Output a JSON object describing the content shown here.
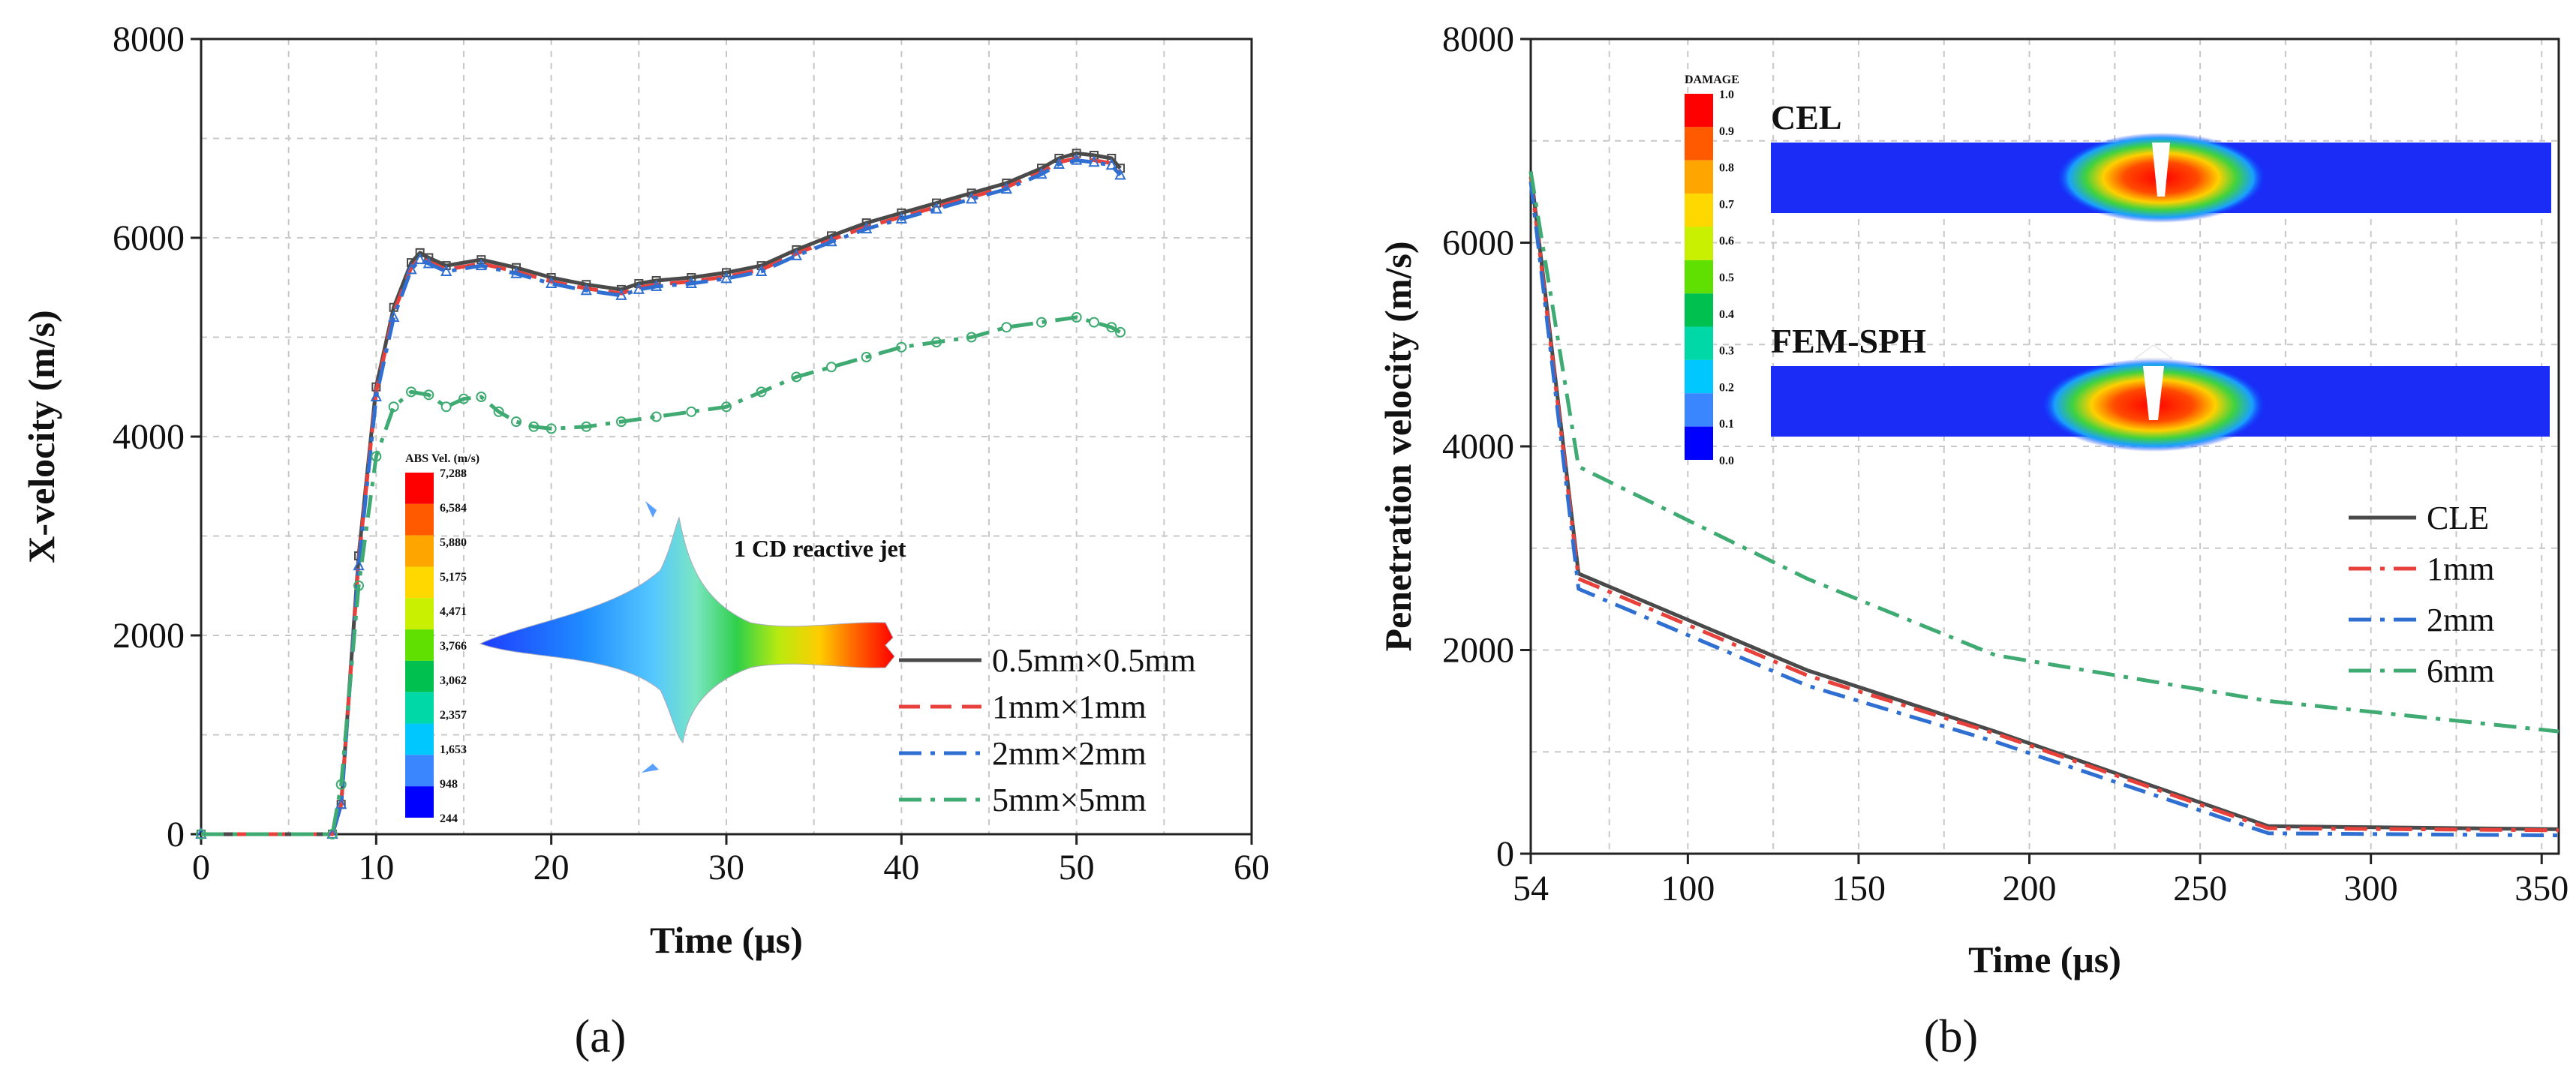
{
  "chart_data": [
    {
      "id": "a",
      "type": "line",
      "panel_label": "(a)",
      "xlabel": "Time (μs)",
      "ylabel": "X-velocity (m/s)",
      "xlim": [
        0,
        60
      ],
      "ylim": [
        0,
        8000
      ],
      "x_ticks": [
        0,
        10,
        20,
        30,
        40,
        50,
        60
      ],
      "y_ticks": [
        0,
        2000,
        4000,
        6000,
        8000
      ],
      "grid": true,
      "legend_position": "bottom-right",
      "series": [
        {
          "name": "0.5mm×0.5mm",
          "color": "#4a4a4a",
          "dash": "solid",
          "marker": "square",
          "x": [
            0,
            7.5,
            8,
            9,
            10,
            11,
            12,
            12.5,
            13,
            14,
            16,
            18,
            20,
            22,
            24,
            25,
            26,
            28,
            30,
            32,
            34,
            36,
            38,
            40,
            42,
            44,
            46,
            48,
            49,
            50,
            51,
            52,
            52.5
          ],
          "y": [
            0,
            0,
            300,
            2800,
            4500,
            5300,
            5750,
            5850,
            5800,
            5720,
            5780,
            5700,
            5600,
            5530,
            5480,
            5540,
            5570,
            5600,
            5650,
            5720,
            5880,
            6020,
            6150,
            6250,
            6350,
            6450,
            6550,
            6700,
            6800,
            6850,
            6830,
            6800,
            6700
          ]
        },
        {
          "name": "1mm×1mm",
          "color": "#e8413c",
          "dash": "dashed",
          "marker": "none",
          "x": [
            0,
            7.5,
            8,
            9,
            10,
            11,
            12,
            12.5,
            13,
            14,
            16,
            18,
            20,
            22,
            24,
            25,
            26,
            28,
            30,
            32,
            34,
            36,
            38,
            40,
            42,
            44,
            46,
            48,
            49,
            50,
            51,
            52,
            52.5
          ],
          "y": [
            0,
            0,
            300,
            2750,
            4450,
            5250,
            5700,
            5800,
            5760,
            5680,
            5740,
            5660,
            5560,
            5490,
            5440,
            5500,
            5530,
            5560,
            5610,
            5680,
            5840,
            5980,
            6110,
            6210,
            6310,
            6410,
            6510,
            6660,
            6760,
            6800,
            6780,
            6750,
            6650
          ]
        },
        {
          "name": "2mm×2mm",
          "color": "#2f6fd1",
          "dash": "dashdot",
          "marker": "triangle",
          "x": [
            0,
            7.5,
            8,
            9,
            10,
            11,
            12,
            12.5,
            13,
            14,
            16,
            18,
            20,
            22,
            24,
            25,
            26,
            28,
            30,
            32,
            34,
            36,
            38,
            40,
            42,
            44,
            46,
            48,
            49,
            50,
            51,
            52,
            52.5
          ],
          "y": [
            0,
            0,
            300,
            2700,
            4400,
            5200,
            5680,
            5780,
            5740,
            5660,
            5720,
            5640,
            5540,
            5470,
            5420,
            5480,
            5510,
            5540,
            5590,
            5660,
            5820,
            5960,
            6090,
            6190,
            6290,
            6390,
            6490,
            6640,
            6740,
            6780,
            6760,
            6730,
            6630
          ]
        },
        {
          "name": "5mm×5mm",
          "color": "#3faa72",
          "dash": "dashdot",
          "marker": "circle",
          "x": [
            0,
            7.5,
            8,
            9,
            10,
            11,
            12,
            13,
            14,
            15,
            16,
            17,
            18,
            19,
            20,
            22,
            24,
            26,
            28,
            30,
            32,
            34,
            36,
            38,
            40,
            42,
            44,
            46,
            48,
            50,
            51,
            52,
            52.5
          ],
          "y": [
            0,
            0,
            500,
            2500,
            3800,
            4300,
            4450,
            4420,
            4300,
            4380,
            4400,
            4250,
            4150,
            4100,
            4080,
            4100,
            4150,
            4200,
            4250,
            4300,
            4450,
            4600,
            4700,
            4800,
            4900,
            4950,
            5000,
            5100,
            5150,
            5200,
            5150,
            5100,
            5050
          ]
        }
      ],
      "inset": {
        "label": "1 CD reactive jet",
        "colorbar_title": "ABS Vel. (m/s)",
        "colorbar_values": [
          "7,288",
          "6,584",
          "5,880",
          "5,175",
          "4,471",
          "3,766",
          "3,062",
          "2,357",
          "1,653",
          "948",
          "244"
        ],
        "colorbar_colors": [
          "#ff0000",
          "#ff5a00",
          "#ffa500",
          "#ffd800",
          "#c8f000",
          "#60e000",
          "#00c050",
          "#00d8a8",
          "#00c8ff",
          "#3a86ff",
          "#0000ff"
        ]
      }
    },
    {
      "id": "b",
      "type": "line",
      "panel_label": "(b)",
      "xlabel": "Time (μs)",
      "ylabel": "Penetration velocity (m/s)",
      "xlim": [
        54,
        355
      ],
      "ylim": [
        0,
        8000
      ],
      "x_ticks": [
        54,
        100,
        150,
        200,
        250,
        300,
        350
      ],
      "y_ticks": [
        0,
        2000,
        4000,
        6000,
        8000
      ],
      "grid": true,
      "legend_position": "right",
      "series": [
        {
          "name": "CLE",
          "color": "#4a4a4a",
          "dash": "solid",
          "x": [
            54,
            68,
            135,
            190,
            270,
            355
          ],
          "y": [
            6700,
            2750,
            1800,
            1200,
            270,
            240
          ]
        },
        {
          "name": "1mm",
          "color": "#e8413c",
          "dash": "dashdot",
          "x": [
            54,
            68,
            135,
            190,
            270,
            355
          ],
          "y": [
            6650,
            2700,
            1750,
            1180,
            250,
            230
          ]
        },
        {
          "name": "2mm",
          "color": "#2f6fd1",
          "dash": "dashdot",
          "x": [
            54,
            68,
            135,
            190,
            270,
            355
          ],
          "y": [
            6600,
            2600,
            1650,
            1100,
            200,
            180
          ]
        },
        {
          "name": "6mm",
          "color": "#3faa72",
          "dash": "dashdot",
          "x": [
            54,
            68,
            135,
            190,
            270,
            355
          ],
          "y": [
            6700,
            3800,
            2700,
            1950,
            1500,
            1200
          ]
        }
      ],
      "inset": {
        "colorbar_title": "DAMAGE",
        "colorbar_values": [
          "1.0",
          "0.9",
          "0.8",
          "0.7",
          "0.6",
          "0.5",
          "0.4",
          "0.3",
          "0.2",
          "0.1",
          "0.0"
        ],
        "colorbar_colors": [
          "#ff0000",
          "#ff5a00",
          "#ffa500",
          "#ffd800",
          "#c8f000",
          "#60e000",
          "#00c050",
          "#00d8a8",
          "#00c8ff",
          "#3a86ff",
          "#0000ff"
        ],
        "sim_labels": [
          "CEL",
          "FEM-SPH"
        ]
      }
    }
  ]
}
